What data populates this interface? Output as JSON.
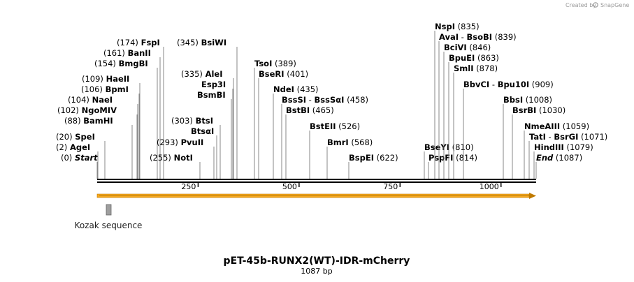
{
  "credit": {
    "text": "Created by",
    "brand": "SnapGene"
  },
  "map": {
    "title": "pET-45b-RUNX2(WT)-IDR-mCherry",
    "length_label": "1087 bp",
    "length": 1087
  },
  "ruler": {
    "ticks": [
      {
        "pos": 250,
        "label": "250"
      },
      {
        "pos": 500,
        "label": "500"
      },
      {
        "pos": 750,
        "label": "750"
      },
      {
        "pos": 1000,
        "label": "1000"
      }
    ]
  },
  "features": [
    {
      "name": "Kozak sequence",
      "start": 22,
      "end": 33,
      "color": "#9e9e9e"
    }
  ],
  "orf": {
    "color": "#f7a81e",
    "direction": "forward"
  },
  "sites": [
    {
      "id": "start",
      "pos": "(0)",
      "name": "Start",
      "site": 0,
      "ital": true
    },
    {
      "id": "agei",
      "pos": "(2)",
      "name": "AgeI",
      "site": 2
    },
    {
      "id": "spei",
      "pos": "(20)",
      "name": "SpeI",
      "site": 20
    },
    {
      "id": "bamhi",
      "pos": "(88)",
      "name": "BamHI",
      "site": 88
    },
    {
      "id": "ngomiv",
      "pos": "(102)",
      "name": "NgoMIV",
      "site": 102
    },
    {
      "id": "naei",
      "pos": "(104)",
      "name": "NaeI",
      "site": 104
    },
    {
      "id": "bpmi",
      "pos": "(106)",
      "name": "BpmI",
      "site": 106
    },
    {
      "id": "haeii",
      "pos": "(109)",
      "name": "HaeII",
      "site": 109
    },
    {
      "id": "bmgbi",
      "pos": "(154)",
      "name": "BmgBI",
      "site": 154
    },
    {
      "id": "banii",
      "pos": "(161)",
      "name": "BanII",
      "site": 161
    },
    {
      "id": "fspi",
      "pos": "(174)",
      "name": "FspI",
      "site": 174
    },
    {
      "id": "noti",
      "pos": "(255)",
      "name": "NotI",
      "site": 255
    },
    {
      "id": "pvuii",
      "pos": "(293)",
      "name": "PvuII",
      "site": 293
    },
    {
      "id": "btsai",
      "pos": "",
      "name": "BtsαI",
      "site": 303
    },
    {
      "id": "btsi",
      "pos": "(303)",
      "name": "BtsI",
      "site": 303
    },
    {
      "id": "bsmbi",
      "pos": "",
      "name": "BsmBI",
      "site": 335
    },
    {
      "id": "esp3i",
      "pos": "",
      "name": "Esp3I",
      "site": 335
    },
    {
      "id": "alei",
      "pos": "(335)",
      "name": "AleI",
      "site": 335
    },
    {
      "id": "bsiwi",
      "pos": "(345)",
      "name": "BsiWI",
      "site": 345
    },
    {
      "id": "tsoi",
      "pos": "(389)",
      "name": "TsoI",
      "site": 389
    },
    {
      "id": "bseri",
      "pos": "(401)",
      "name": "BseRI",
      "site": 401
    },
    {
      "id": "ndei",
      "pos": "(435)",
      "name": "NdeI",
      "site": 435
    },
    {
      "id": "bsssi",
      "pos": "(458)",
      "name": "BssSI",
      "name2": "BssSαI",
      "site": 458
    },
    {
      "id": "bstbi",
      "pos": "(465)",
      "name": "BstBI",
      "site": 465
    },
    {
      "id": "bsteii",
      "pos": "(526)",
      "name": "BstEII",
      "site": 526
    },
    {
      "id": "bmri",
      "pos": "(568)",
      "name": "BmrI",
      "site": 568
    },
    {
      "id": "bspei",
      "pos": "(622)",
      "name": "BspEI",
      "site": 622
    },
    {
      "id": "bseyi",
      "pos": "(810)",
      "name": "BseYI",
      "site": 810
    },
    {
      "id": "pspfi",
      "pos": "(814)",
      "name": "PspFI",
      "site": 814
    },
    {
      "id": "nspi",
      "pos": "(835)",
      "name": "NspI",
      "site": 835
    },
    {
      "id": "avai",
      "pos": "(839)",
      "name": "AvaI",
      "name2": "BsoBI",
      "site": 839
    },
    {
      "id": "bcivi",
      "pos": "(846)",
      "name": "BciVI",
      "site": 846
    },
    {
      "id": "bpuei",
      "pos": "(863)",
      "name": "BpuEI",
      "site": 863
    },
    {
      "id": "smli",
      "pos": "(878)",
      "name": "SmlI",
      "site": 878
    },
    {
      "id": "bbvci",
      "pos": "(909)",
      "name": "BbvCI",
      "name2": "Bpu10I",
      "site": 909
    },
    {
      "id": "bbsi",
      "pos": "(1008)",
      "name": "BbsI",
      "site": 1008
    },
    {
      "id": "bsrbi",
      "pos": "(1030)",
      "name": "BsrBI",
      "site": 1030
    },
    {
      "id": "nmeaiii",
      "pos": "(1059)",
      "name": "NmeAIII",
      "site": 1059
    },
    {
      "id": "tati",
      "pos": "(1071)",
      "name": "TatI",
      "name2": "BsrGI",
      "site": 1071
    },
    {
      "id": "hindiii",
      "pos": "(1079)",
      "name": "HindIII",
      "site": 1079
    },
    {
      "id": "end",
      "pos": "(1087)",
      "name": "End",
      "site": 1087,
      "ital": true
    }
  ]
}
